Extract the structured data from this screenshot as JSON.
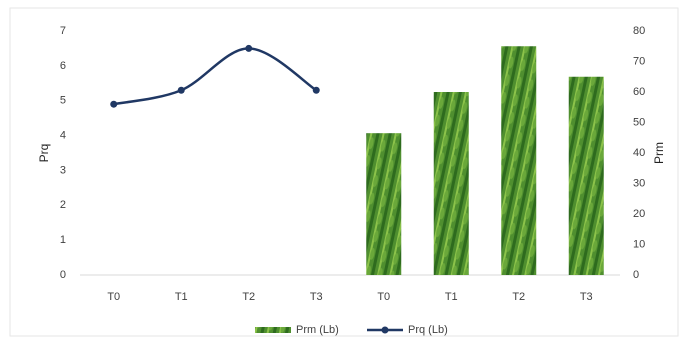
{
  "chart_data": {
    "type": "combo",
    "categories": [
      "T0",
      "T1",
      "T2",
      "T3",
      "T0",
      "T1",
      "T2",
      "T3"
    ],
    "y_label": "Prq",
    "y2_label": "Prm",
    "ylim": [
      0,
      7
    ],
    "yticks": [
      0,
      1,
      2,
      3,
      4,
      5,
      6,
      7
    ],
    "y2lim": [
      0,
      80
    ],
    "y2ticks": [
      0,
      10,
      20,
      30,
      40,
      50,
      60,
      70,
      80
    ],
    "series": [
      {
        "name": "Prm (Lb)",
        "type": "bar",
        "axis": "y2",
        "color": "#4f8f2f",
        "values": [
          null,
          null,
          null,
          null,
          46.5,
          60,
          75,
          65
        ]
      },
      {
        "name": "Prq (Lb)",
        "type": "line",
        "color": "#203864",
        "values": [
          4.9,
          5.3,
          6.5,
          5.3,
          null,
          null,
          null,
          null
        ]
      }
    ]
  }
}
